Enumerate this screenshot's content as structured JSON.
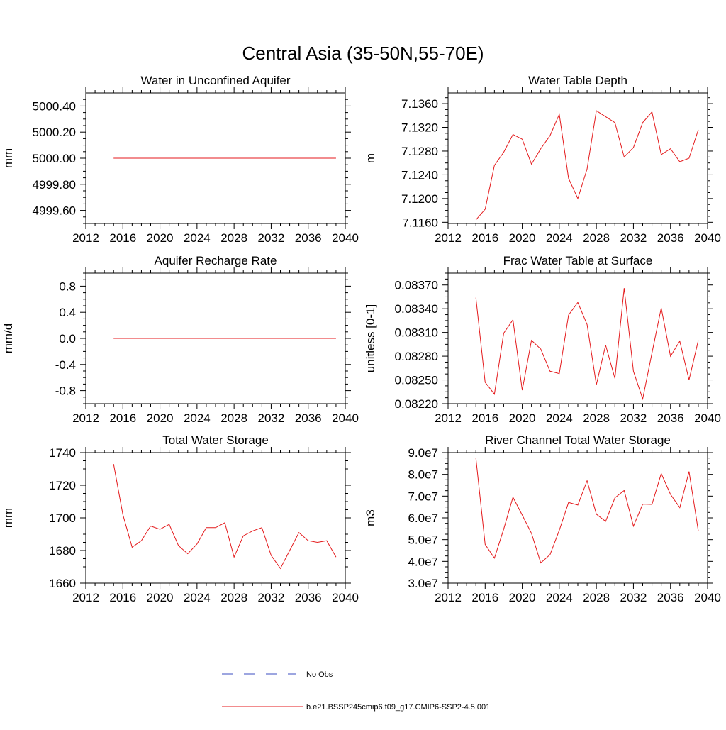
{
  "figure": {
    "title": "Central Asia (35-50N,55-70E)"
  },
  "legend": {
    "entries": [
      {
        "label": "No Obs",
        "color": "#3b4cc0",
        "style": "dashed"
      },
      {
        "label": "b.e21.BSSP245cmip6.f09_g17.CMIP6-SSP2-4.5.001",
        "color": "#e41a1c",
        "style": "solid"
      }
    ]
  },
  "chart_data": [
    {
      "type": "line",
      "title": "Water in Unconfined Aquifer",
      "ylabel": "mm",
      "xlim": [
        2012,
        2040
      ],
      "ylim": [
        4999.5,
        5000.5
      ],
      "xticks": [
        "2012",
        "2016",
        "2020",
        "2024",
        "2028",
        "2032",
        "2036",
        "2040"
      ],
      "yticks": [
        {
          "v": 4999.6,
          "label": "4999.60"
        },
        {
          "v": 4999.8,
          "label": "4999.80"
        },
        {
          "v": 5000.0,
          "label": "5000.00"
        },
        {
          "v": 5000.2,
          "label": "5000.20"
        },
        {
          "v": 5000.4,
          "label": "5000.40"
        }
      ],
      "grid": false,
      "series": [
        {
          "color": "#e41a1c",
          "x": [
            2015,
            2016,
            2017,
            2018,
            2019,
            2020,
            2021,
            2022,
            2023,
            2024,
            2025,
            2026,
            2027,
            2028,
            2029,
            2030,
            2031,
            2032,
            2033,
            2034,
            2035,
            2036,
            2037,
            2038,
            2039
          ],
          "y": [
            5000,
            5000,
            5000,
            5000,
            5000,
            5000,
            5000,
            5000,
            5000,
            5000,
            5000,
            5000,
            5000,
            5000,
            5000,
            5000,
            5000,
            5000,
            5000,
            5000,
            5000,
            5000,
            5000,
            5000,
            5000
          ]
        }
      ]
    },
    {
      "type": "line",
      "title": "Water Table Depth",
      "ylabel": "m",
      "xlim": [
        2012,
        2040
      ],
      "ylim": [
        7.1158,
        7.1378
      ],
      "xticks": [
        "2012",
        "2016",
        "2020",
        "2024",
        "2028",
        "2032",
        "2036",
        "2040"
      ],
      "yticks": [
        {
          "v": 7.116,
          "label": "7.1160"
        },
        {
          "v": 7.12,
          "label": "7.1200"
        },
        {
          "v": 7.124,
          "label": "7.1240"
        },
        {
          "v": 7.128,
          "label": "7.1280"
        },
        {
          "v": 7.132,
          "label": "7.1320"
        },
        {
          "v": 7.136,
          "label": "7.1360"
        }
      ],
      "grid": false,
      "series": [
        {
          "color": "#e41a1c",
          "x": [
            2015,
            2016,
            2017,
            2018,
            2019,
            2020,
            2021,
            2022,
            2023,
            2024,
            2025,
            2026,
            2027,
            2028,
            2029,
            2030,
            2031,
            2032,
            2033,
            2034,
            2035,
            2036,
            2037,
            2038,
            2039
          ],
          "y": [
            7.1164,
            7.1182,
            7.1256,
            7.1278,
            7.1308,
            7.13,
            7.1258,
            7.1284,
            7.1306,
            7.1342,
            7.1234,
            7.12,
            7.125,
            7.1348,
            7.1338,
            7.1328,
            7.127,
            7.1286,
            7.1328,
            7.1346,
            7.1274,
            7.1284,
            7.1262,
            7.1268,
            7.1316
          ]
        }
      ]
    },
    {
      "type": "line",
      "title": "Aquifer Recharge Rate",
      "ylabel": "mm/d",
      "xlim": [
        2012,
        2040
      ],
      "ylim": [
        -1.0,
        1.0
      ],
      "xticks": [
        "2012",
        "2016",
        "2020",
        "2024",
        "2028",
        "2032",
        "2036",
        "2040"
      ],
      "yticks": [
        {
          "v": -0.8,
          "label": "-0.8"
        },
        {
          "v": -0.4,
          "label": "-0.4"
        },
        {
          "v": 0.0,
          "label": "0.0"
        },
        {
          "v": 0.4,
          "label": "0.4"
        },
        {
          "v": 0.8,
          "label": "0.8"
        }
      ],
      "grid": false,
      "series": [
        {
          "color": "#e41a1c",
          "x": [
            2015,
            2016,
            2017,
            2018,
            2019,
            2020,
            2021,
            2022,
            2023,
            2024,
            2025,
            2026,
            2027,
            2028,
            2029,
            2030,
            2031,
            2032,
            2033,
            2034,
            2035,
            2036,
            2037,
            2038,
            2039
          ],
          "y": [
            0,
            0,
            0,
            0,
            0,
            0,
            0,
            0,
            0,
            0,
            0,
            0,
            0,
            0,
            0,
            0,
            0,
            0,
            0,
            0,
            0,
            0,
            0,
            0,
            0
          ]
        }
      ]
    },
    {
      "type": "line",
      "title": "Frac Water Table at Surface",
      "ylabel": "unitless [0-1]",
      "xlim": [
        2012,
        2040
      ],
      "ylim": [
        0.0822,
        0.08385
      ],
      "xticks": [
        "2012",
        "2016",
        "2020",
        "2024",
        "2028",
        "2032",
        "2036",
        "2040"
      ],
      "yticks": [
        {
          "v": 0.0822,
          "label": "0.08220"
        },
        {
          "v": 0.0825,
          "label": "0.08250"
        },
        {
          "v": 0.0828,
          "label": "0.08280"
        },
        {
          "v": 0.0831,
          "label": "0.08310"
        },
        {
          "v": 0.0834,
          "label": "0.08340"
        },
        {
          "v": 0.0837,
          "label": "0.08370"
        }
      ],
      "grid": false,
      "series": [
        {
          "color": "#e41a1c",
          "x": [
            2015,
            2016,
            2017,
            2018,
            2019,
            2020,
            2021,
            2022,
            2023,
            2024,
            2025,
            2026,
            2027,
            2028,
            2029,
            2030,
            2031,
            2032,
            2033,
            2034,
            2035,
            2036,
            2037,
            2038,
            2039
          ],
          "y": [
            0.08354,
            0.08247,
            0.08232,
            0.08309,
            0.08326,
            0.08237,
            0.083,
            0.08289,
            0.08261,
            0.08258,
            0.08332,
            0.08348,
            0.0832,
            0.08244,
            0.08294,
            0.08252,
            0.08366,
            0.08261,
            0.08226,
            0.08284,
            0.08341,
            0.0828,
            0.08299,
            0.0825,
            0.083
          ]
        }
      ]
    },
    {
      "type": "line",
      "title": "Total Water Storage",
      "ylabel": "mm",
      "xlim": [
        2012,
        2040
      ],
      "ylim": [
        1660,
        1740
      ],
      "xticks": [
        "2012",
        "2016",
        "2020",
        "2024",
        "2028",
        "2032",
        "2036",
        "2040"
      ],
      "yticks": [
        {
          "v": 1660,
          "label": "1660"
        },
        {
          "v": 1680,
          "label": "1680"
        },
        {
          "v": 1700,
          "label": "1700"
        },
        {
          "v": 1720,
          "label": "1720"
        },
        {
          "v": 1740,
          "label": "1740"
        }
      ],
      "grid": false,
      "series": [
        {
          "color": "#e41a1c",
          "x": [
            2015,
            2016,
            2017,
            2018,
            2019,
            2020,
            2021,
            2022,
            2023,
            2024,
            2025,
            2026,
            2027,
            2028,
            2029,
            2030,
            2031,
            2032,
            2033,
            2034,
            2035,
            2036,
            2037,
            2038,
            2039
          ],
          "y": [
            1733,
            1702,
            1682,
            1686,
            1695,
            1693,
            1696,
            1683,
            1678,
            1684,
            1694,
            1694,
            1697,
            1676,
            1689,
            1692,
            1694,
            1677,
            1669,
            1680,
            1691,
            1686,
            1685,
            1686,
            1676
          ]
        }
      ]
    },
    {
      "type": "line",
      "title": "River Channel Total Water Storage",
      "ylabel": "m3",
      "xlim": [
        2012,
        2040
      ],
      "ylim": [
        30000000,
        90000000
      ],
      "xticks": [
        "2012",
        "2016",
        "2020",
        "2024",
        "2028",
        "2032",
        "2036",
        "2040"
      ],
      "yticks": [
        {
          "v": 30000000,
          "label": "3.0e7"
        },
        {
          "v": 40000000,
          "label": "4.0e7"
        },
        {
          "v": 50000000,
          "label": "5.0e7"
        },
        {
          "v": 60000000,
          "label": "6.0e7"
        },
        {
          "v": 70000000,
          "label": "7.0e7"
        },
        {
          "v": 80000000,
          "label": "8.0e7"
        },
        {
          "v": 90000000,
          "label": "9.0e7"
        }
      ],
      "grid": false,
      "series": [
        {
          "color": "#e41a1c",
          "x": [
            2015,
            2016,
            2017,
            2018,
            2019,
            2020,
            2021,
            2022,
            2023,
            2024,
            2025,
            2026,
            2027,
            2028,
            2029,
            2030,
            2031,
            2032,
            2033,
            2034,
            2035,
            2036,
            2037,
            2038,
            2039
          ],
          "y": [
            87500000,
            47800000,
            41500000,
            54800000,
            69500000,
            61300000,
            52900000,
            39300000,
            43100000,
            54300000,
            67100000,
            65900000,
            77100000,
            61700000,
            58400000,
            69200000,
            72600000,
            56200000,
            66300000,
            66200000,
            80400000,
            70800000,
            64700000,
            81300000,
            54000000
          ]
        }
      ]
    }
  ]
}
